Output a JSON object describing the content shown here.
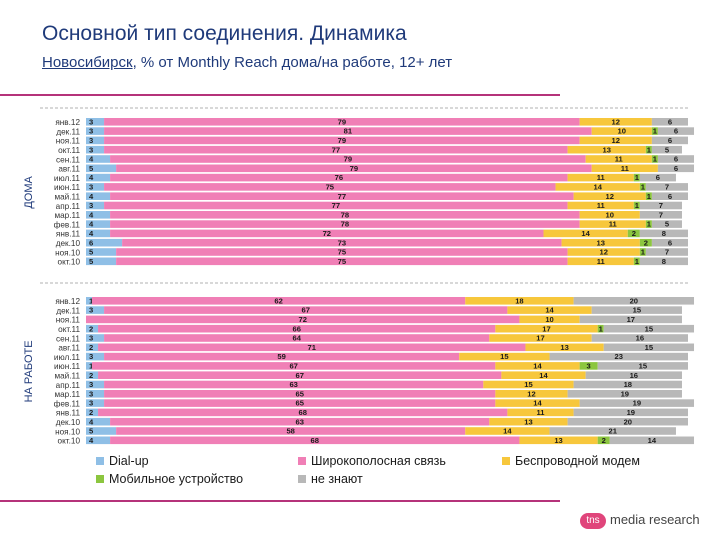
{
  "header": {
    "title": "Основной тип соединения. Динамика",
    "subtitle_city": "Новосибирск",
    "subtitle_rest": ", % от Monthly Reach дома/на работе, 12+ лет"
  },
  "brand": {
    "logo": "tns",
    "name": "media research"
  },
  "colors": {
    "dialup": "#8fbfe6",
    "broadband": "#f07fb6",
    "wireless": "#f7c73c",
    "mobile": "#8cc63f",
    "dontknow": "#b8b8b8"
  },
  "chart_data": {
    "type": "bar",
    "orientation": "horizontal",
    "stacked": true,
    "xlim": [
      0,
      100
    ],
    "legend_position": "bottom",
    "series": [
      {
        "key": "dialup",
        "name": "Dial-up"
      },
      {
        "key": "broadband",
        "name": "Широкополосная связь"
      },
      {
        "key": "wireless",
        "name": "Беспроводной модем"
      },
      {
        "key": "mobile",
        "name": "Мобильное устройство"
      },
      {
        "key": "dontknow",
        "name": "не знают"
      }
    ],
    "panels": [
      {
        "label": "ДОМА",
        "rows": [
          {
            "label": "янв.12",
            "values": [
              3,
              79,
              12,
              0,
              6
            ]
          },
          {
            "label": "дек.11",
            "values": [
              3,
              81,
              10,
              1,
              6
            ]
          },
          {
            "label": "ноя.11",
            "values": [
              3,
              79,
              12,
              0,
              6
            ]
          },
          {
            "label": "окт.11",
            "values": [
              3,
              77,
              13,
              1,
              5
            ]
          },
          {
            "label": "сен.11",
            "values": [
              4,
              79,
              11,
              1,
              6
            ]
          },
          {
            "label": "авг.11",
            "values": [
              5,
              79,
              11,
              0,
              6
            ]
          },
          {
            "label": "июл.11",
            "values": [
              4,
              76,
              11,
              1,
              6
            ]
          },
          {
            "label": "июн.11",
            "values": [
              3,
              75,
              14,
              1,
              7
            ]
          },
          {
            "label": "май.11",
            "values": [
              4,
              77,
              12,
              1,
              6
            ]
          },
          {
            "label": "апр.11",
            "values": [
              3,
              77,
              11,
              1,
              7
            ]
          },
          {
            "label": "мар.11",
            "values": [
              4,
              78,
              10,
              0,
              7
            ]
          },
          {
            "label": "фев.11",
            "values": [
              4,
              78,
              11,
              1,
              5
            ]
          },
          {
            "label": "янв.11",
            "values": [
              4,
              72,
              14,
              2,
              8
            ]
          },
          {
            "label": "дек.10",
            "values": [
              6,
              73,
              13,
              2,
              6
            ]
          },
          {
            "label": "ноя.10",
            "values": [
              5,
              75,
              12,
              1,
              7
            ]
          },
          {
            "label": "окт.10",
            "values": [
              5,
              75,
              11,
              1,
              8
            ]
          }
        ]
      },
      {
        "label": "НА РАБОТЕ",
        "rows": [
          {
            "label": "янв.12",
            "values": [
              1,
              62,
              18,
              0,
              20
            ]
          },
          {
            "label": "дек.11",
            "values": [
              3,
              67,
              14,
              0,
              15
            ]
          },
          {
            "label": "ноя.11",
            "values": [
              0,
              72,
              10,
              0,
              17
            ]
          },
          {
            "label": "окт.11",
            "values": [
              2,
              66,
              17,
              1,
              15
            ]
          },
          {
            "label": "сен.11",
            "values": [
              3,
              64,
              17,
              0,
              16
            ]
          },
          {
            "label": "авг.11",
            "values": [
              2,
              71,
              13,
              0,
              15
            ]
          },
          {
            "label": "июл.11",
            "values": [
              3,
              59,
              15,
              0,
              23
            ]
          },
          {
            "label": "июн.11",
            "values": [
              1,
              67,
              14,
              3,
              15
            ]
          },
          {
            "label": "май.11",
            "values": [
              2,
              67,
              14,
              0,
              16
            ]
          },
          {
            "label": "апр.11",
            "values": [
              3,
              63,
              15,
              0,
              18
            ]
          },
          {
            "label": "мар.11",
            "values": [
              3,
              65,
              12,
              0,
              19
            ]
          },
          {
            "label": "фев.11",
            "values": [
              3,
              65,
              14,
              0,
              19
            ]
          },
          {
            "label": "янв.11",
            "values": [
              2,
              68,
              11,
              0,
              19
            ]
          },
          {
            "label": "дек.10",
            "values": [
              4,
              63,
              13,
              0,
              20
            ]
          },
          {
            "label": "ноя.10",
            "values": [
              5,
              58,
              14,
              0,
              21
            ]
          },
          {
            "label": "окт.10",
            "values": [
              4,
              68,
              13,
              2,
              14
            ]
          }
        ]
      }
    ]
  }
}
